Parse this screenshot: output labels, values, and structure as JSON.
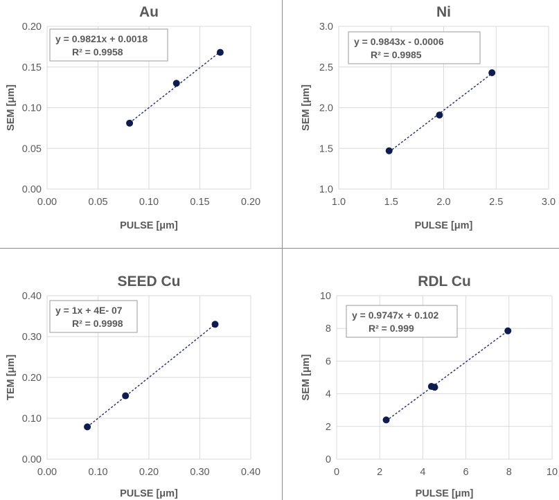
{
  "chart_data": [
    {
      "type": "scatter",
      "title": "Au",
      "xlabel": "PULSE [μm]",
      "ylabel": "SEM [μm]",
      "xlim": [
        0,
        0.2
      ],
      "ylim": [
        0,
        0.2
      ],
      "xticks": [
        "0.00",
        "0.05",
        "0.10",
        "0.15",
        "0.20"
      ],
      "yticks": [
        "0.00",
        "0.05",
        "0.10",
        "0.15",
        "0.20"
      ],
      "grid": true,
      "points": [
        {
          "x": 0.081,
          "y": 0.081
        },
        {
          "x": 0.127,
          "y": 0.13
        },
        {
          "x": 0.17,
          "y": 0.168
        }
      ],
      "trendline": {
        "slope": 0.9821,
        "intercept": 0.0018,
        "style": "dotted"
      },
      "annotation": [
        "y = 0.9821x + 0.0018",
        "R² = 0.9958"
      ],
      "colors": {
        "marker": "#0f1d4e",
        "trendline": "#1f2a66",
        "grid": "#d9d9d9"
      }
    },
    {
      "type": "scatter",
      "title": "Ni",
      "xlabel": "PULSE [μm]",
      "ylabel": "SEM [μm]",
      "xlim": [
        1.0,
        3.0
      ],
      "ylim": [
        1.0,
        3.0
      ],
      "xticks": [
        "1.0",
        "1.5",
        "2.0",
        "2.5",
        "3.0"
      ],
      "yticks": [
        "1.0",
        "1.5",
        "2.0",
        "2.5",
        "3.0"
      ],
      "grid": true,
      "points": [
        {
          "x": 1.48,
          "y": 1.47
        },
        {
          "x": 1.96,
          "y": 1.91
        },
        {
          "x": 2.46,
          "y": 2.43
        }
      ],
      "trendline": {
        "slope": 0.9843,
        "intercept": -0.0006,
        "style": "dotted"
      },
      "annotation": [
        "y = 0.9843x - 0.0006",
        "R² = 0.9985"
      ],
      "colors": {
        "marker": "#0f1d4e",
        "trendline": "#1f2a66",
        "grid": "#d9d9d9"
      }
    },
    {
      "type": "scatter",
      "title": "SEED Cu",
      "xlabel": "PULSE [μm]",
      "ylabel": "TEM [μm]",
      "xlim": [
        0,
        0.4
      ],
      "ylim": [
        0,
        0.4
      ],
      "xticks": [
        "0.00",
        "0.10",
        "0.20",
        "0.30",
        "0.40"
      ],
      "yticks": [
        "0.00",
        "0.10",
        "0.20",
        "0.30",
        "0.40"
      ],
      "grid": true,
      "points": [
        {
          "x": 0.079,
          "y": 0.079
        },
        {
          "x": 0.154,
          "y": 0.155
        },
        {
          "x": 0.33,
          "y": 0.33
        }
      ],
      "trendline": {
        "slope": 1,
        "intercept": 4e-07,
        "style": "dotted"
      },
      "annotation": [
        "y = 1x + 4E- 07",
        "R² = 0.9998"
      ],
      "colors": {
        "marker": "#0f1d4e",
        "trendline": "#1f2a66",
        "grid": "#d9d9d9"
      }
    },
    {
      "type": "scatter",
      "title": "RDL Cu",
      "xlabel": "PULSE [μm]",
      "ylabel": "SEM [μm]",
      "xlim": [
        0,
        10
      ],
      "ylim": [
        0,
        10
      ],
      "xticks": [
        "0",
        "2",
        "4",
        "6",
        "8",
        "10"
      ],
      "yticks": [
        "0",
        "2",
        "4",
        "6",
        "8",
        "10"
      ],
      "grid": true,
      "points": [
        {
          "x": 2.3,
          "y": 2.4
        },
        {
          "x": 4.4,
          "y": 4.45
        },
        {
          "x": 4.55,
          "y": 4.4
        },
        {
          "x": 7.95,
          "y": 7.85
        }
      ],
      "trendline": {
        "slope": 0.9747,
        "intercept": 0.102,
        "style": "dotted"
      },
      "annotation": [
        "y = 0.9747x + 0.102",
        "R² = 0.999"
      ],
      "colors": {
        "marker": "#0f1d4e",
        "trendline": "#1f2a66",
        "grid": "#d9d9d9"
      }
    }
  ],
  "colors": {
    "text": "#595959",
    "title": "#595959",
    "divider": "#8a8a8a"
  }
}
